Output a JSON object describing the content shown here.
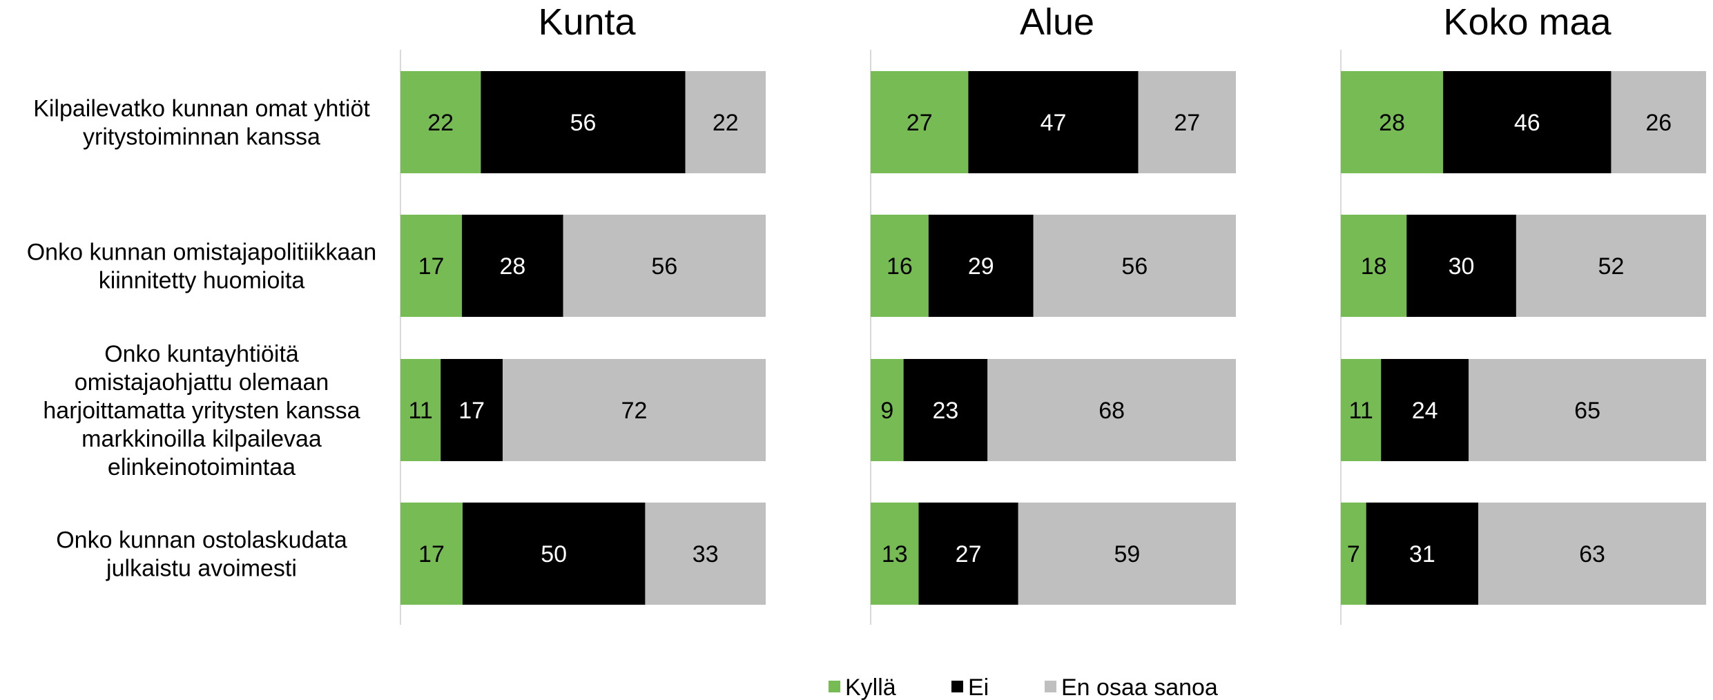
{
  "chart_data": {
    "type": "bar",
    "orientation": "horizontal",
    "stacked": true,
    "percent_total": 100,
    "grid": false,
    "legend_position": "bottom",
    "categories": [
      "Kilpailevatko kunnan omat yhtiöt yritystoiminnan kanssa",
      "Onko kunnan omistajapolitiikkaan kiinnitetty huomioita",
      "Onko kuntayhtiöitä omistajaohjattu olemaan harjoittamatta yritysten kanssa markkinoilla kilpailevaa elinkeinotoimintaa",
      "Onko kunnan ostolaskudata julkaistu avoimesti"
    ],
    "category_lines": [
      [
        "Kilpailevatko kunnan omat yhtiöt",
        "yritystoiminnan kanssa"
      ],
      [
        "Onko kunnan omistajapolitiikkaan",
        "kiinnitetty huomioita"
      ],
      [
        "Onko kuntayhtiöitä",
        "omistajaohjattu olemaan",
        "harjoittamatta yritysten kanssa",
        "markkinoilla kilpailevaa",
        "elinkeinotoimintaa"
      ],
      [
        "Onko kunnan ostolaskudata",
        "julkaistu avoimesti"
      ]
    ],
    "legend": [
      {
        "label": "Kyllä",
        "color": "#77bb55"
      },
      {
        "label": "Ei",
        "color": "#000000"
      },
      {
        "label": "En osaa sanoa",
        "color": "#bfbfbf"
      }
    ],
    "label_colors": [
      "#000000",
      "#ffffff",
      "#000000"
    ],
    "panels": [
      {
        "title": "Kunta",
        "series": [
          {
            "name": "Kyllä",
            "values": [
              22,
              17,
              11,
              17
            ]
          },
          {
            "name": "Ei",
            "values": [
              56,
              28,
              17,
              50
            ]
          },
          {
            "name": "En osaa sanoa",
            "values": [
              22,
              56,
              72,
              33
            ]
          }
        ]
      },
      {
        "title": "Alue",
        "series": [
          {
            "name": "Kyllä",
            "values": [
              27,
              16,
              9,
              13
            ]
          },
          {
            "name": "Ei",
            "values": [
              47,
              29,
              23,
              27
            ]
          },
          {
            "name": "En osaa sanoa",
            "values": [
              27,
              56,
              68,
              59
            ]
          }
        ]
      },
      {
        "title": "Koko maa",
        "series": [
          {
            "name": "Kyllä",
            "values": [
              28,
              18,
              11,
              7
            ]
          },
          {
            "name": "Ei",
            "values": [
              46,
              30,
              24,
              31
            ]
          },
          {
            "name": "En osaa sanoa",
            "values": [
              26,
              52,
              65,
              63
            ]
          }
        ]
      }
    ]
  }
}
